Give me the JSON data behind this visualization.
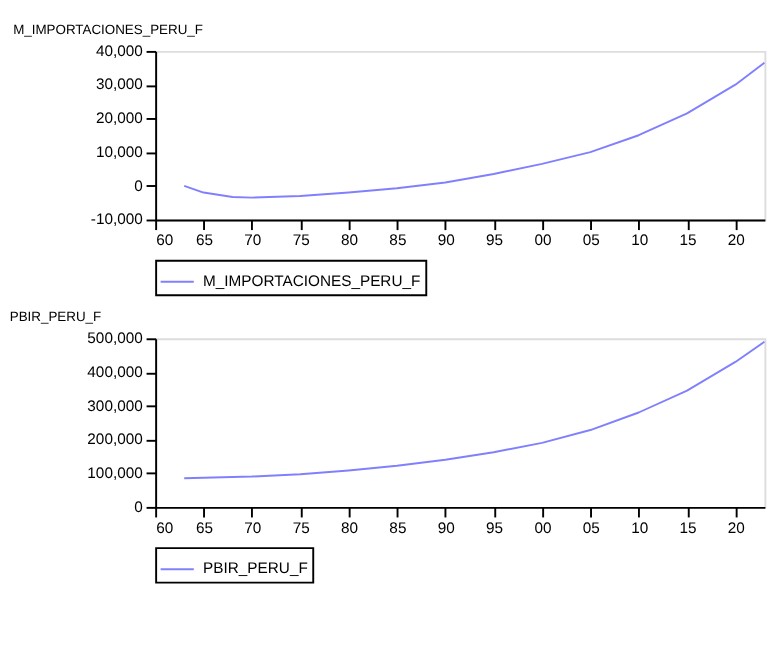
{
  "chart_data": [
    {
      "type": "line",
      "title": "M_IMPORTACIONES_PERU_F",
      "x": [
        1963,
        1965,
        1968,
        1970,
        1975,
        1980,
        1985,
        1990,
        1995,
        2000,
        2005,
        2010,
        2015,
        2020,
        2023
      ],
      "series": [
        {
          "name": "M_IMPORTACIONES_PERU_F",
          "color": "#8080ff",
          "values": [
            0,
            -2000,
            -3300,
            -3500,
            -3000,
            -2000,
            -700,
            1000,
            3500,
            6500,
            10000,
            15000,
            21500,
            30000,
            36500
          ]
        }
      ],
      "xlim": [
        1960,
        2023
      ],
      "xticks": [
        {
          "value": 1960,
          "label": "60"
        },
        {
          "value": 1965,
          "label": "65"
        },
        {
          "value": 1970,
          "label": "70"
        },
        {
          "value": 1975,
          "label": "75"
        },
        {
          "value": 1980,
          "label": "80"
        },
        {
          "value": 1985,
          "label": "85"
        },
        {
          "value": 1990,
          "label": "90"
        },
        {
          "value": 1995,
          "label": "95"
        },
        {
          "value": 2000,
          "label": "00"
        },
        {
          "value": 2005,
          "label": "05"
        },
        {
          "value": 2010,
          "label": "10"
        },
        {
          "value": 2015,
          "label": "15"
        },
        {
          "value": 2020,
          "label": "20"
        }
      ],
      "ylim": [
        -10000,
        40000
      ],
      "yticks": [
        {
          "value": -10000,
          "label": "-10,000"
        },
        0,
        {
          "value": 10000,
          "label": "10,000"
        },
        {
          "value": 20000,
          "label": "20,000"
        },
        {
          "value": 30000,
          "label": "30,000"
        },
        {
          "value": 40000,
          "label": "40,000"
        }
      ],
      "grid": false,
      "legend": "bottom"
    },
    {
      "type": "line",
      "title": "PBIR_PERU_F",
      "x": [
        1963,
        1970,
        1975,
        1980,
        1985,
        1990,
        1995,
        2000,
        2005,
        2010,
        2015,
        2020,
        2023
      ],
      "series": [
        {
          "name": "PBIR_PERU_F",
          "color": "#8080ff",
          "values": [
            85000,
            90000,
            97000,
            108000,
            122000,
            140000,
            162000,
            190000,
            228000,
            280000,
            345000,
            430000,
            490000
          ]
        }
      ],
      "xlim": [
        1960,
        2023
      ],
      "xticks": [
        {
          "value": 1960,
          "label": "60"
        },
        {
          "value": 1965,
          "label": "65"
        },
        {
          "value": 1970,
          "label": "70"
        },
        {
          "value": 1975,
          "label": "75"
        },
        {
          "value": 1980,
          "label": "80"
        },
        {
          "value": 1985,
          "label": "85"
        },
        {
          "value": 1990,
          "label": "90"
        },
        {
          "value": 1995,
          "label": "95"
        },
        {
          "value": 2000,
          "label": "00"
        },
        {
          "value": 2005,
          "label": "05"
        },
        {
          "value": 2010,
          "label": "10"
        },
        {
          "value": 2015,
          "label": "15"
        },
        {
          "value": 2020,
          "label": "20"
        }
      ],
      "ylim": [
        0,
        500000
      ],
      "yticks": [
        0,
        {
          "value": 100000,
          "label": "100,000"
        },
        {
          "value": 200000,
          "label": "200,000"
        },
        {
          "value": 300000,
          "label": "300,000"
        },
        {
          "value": 400000,
          "label": "400,000"
        },
        {
          "value": 500000,
          "label": "500,000"
        }
      ],
      "grid": false,
      "legend": "bottom"
    }
  ]
}
